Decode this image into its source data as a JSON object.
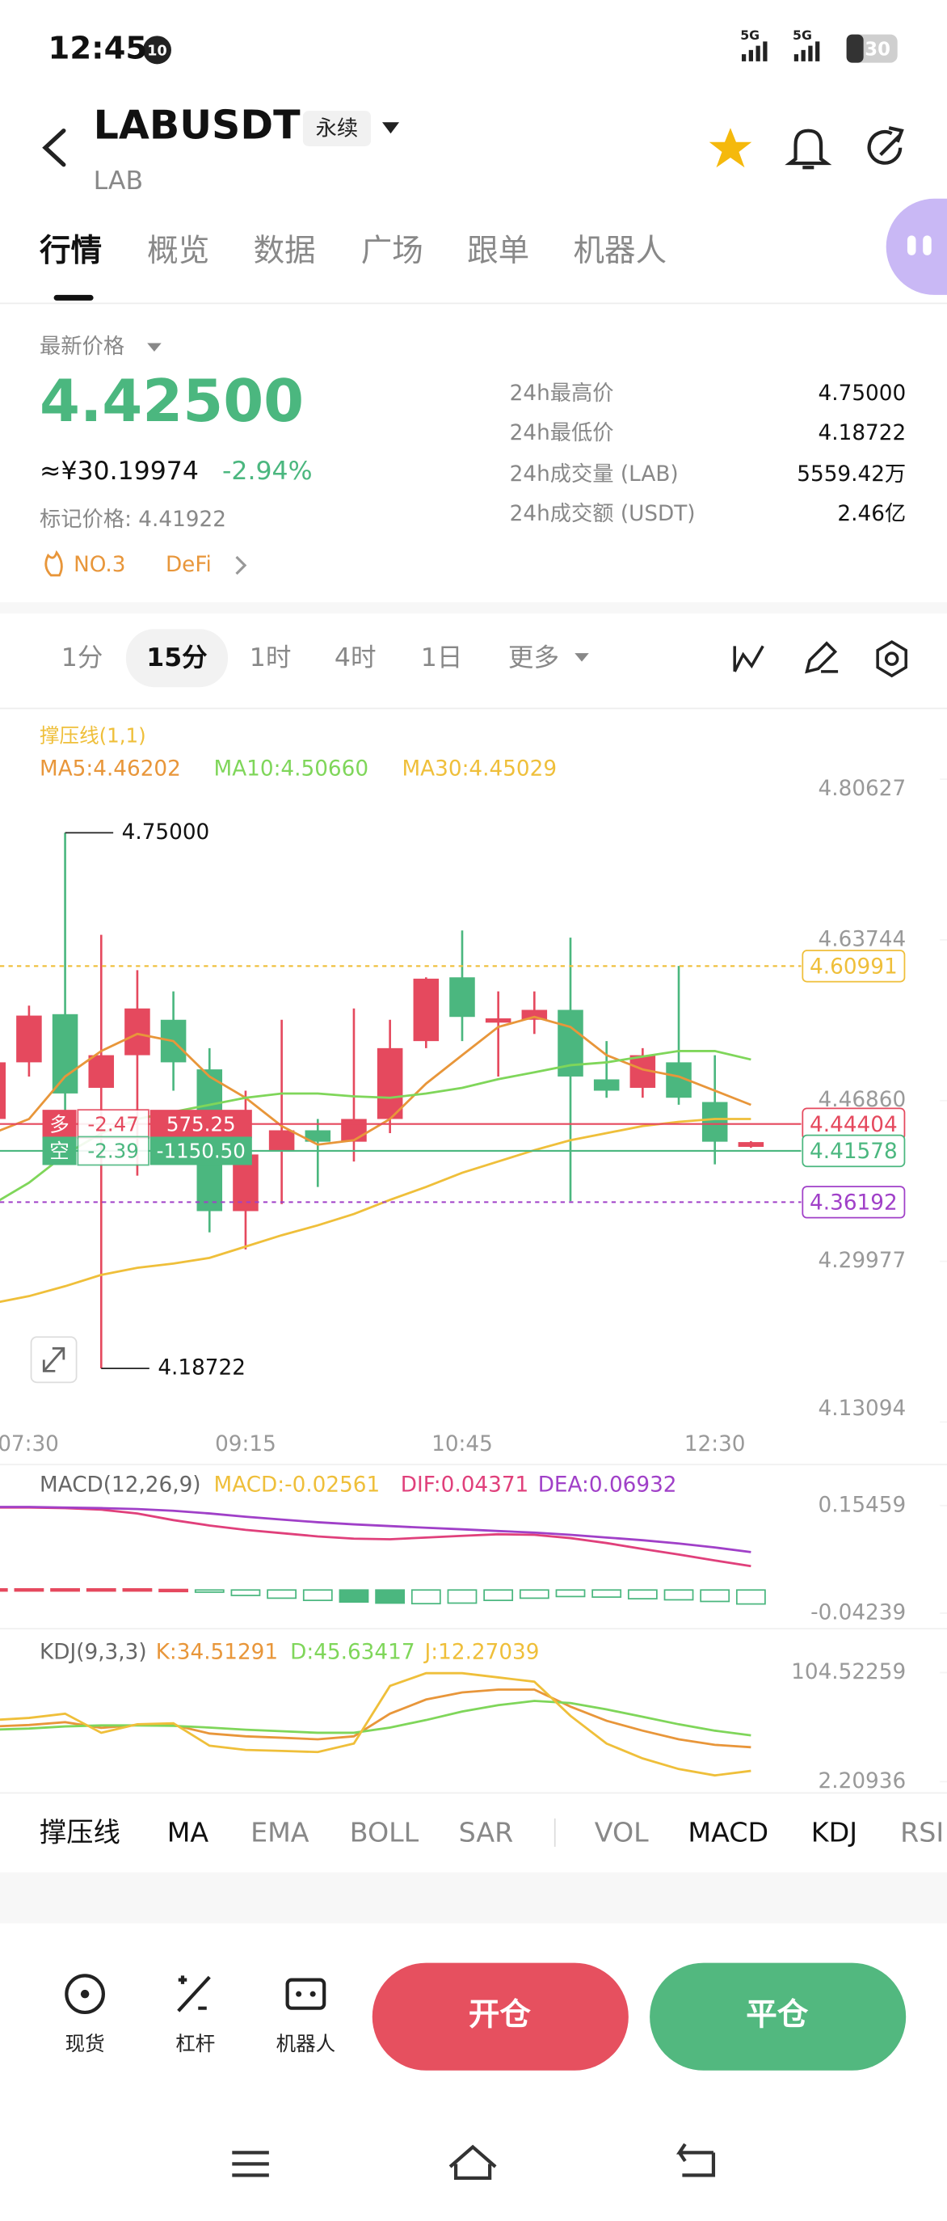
{
  "status": {
    "time": "12:45",
    "badge": "10",
    "network": [
      "5G",
      "5G"
    ],
    "battery": "30"
  },
  "header": {
    "symbol": "LABUSDT",
    "contract": "永续",
    "base": "LAB"
  },
  "tabs": [
    "行情",
    "概览",
    "数据",
    "广场",
    "跟单",
    "机器人"
  ],
  "ticker": {
    "price_label": "最新价格",
    "last": "4.42500",
    "cny": "≈¥30.19974",
    "change": "-2.94%",
    "mark": "标记价格: 4.41922",
    "rank": "NO.3",
    "sector": "DeFi"
  },
  "stats": [
    [
      "24h最高价",
      "4.75000"
    ],
    [
      "24h最低价",
      "4.18722"
    ],
    [
      "24h成交量 (LAB)",
      "5559.42万"
    ],
    [
      "24h成交额 (USDT)",
      "2.46亿"
    ]
  ],
  "intervals": [
    "1分",
    "15分",
    "1时",
    "4时",
    "1日",
    "更多"
  ],
  "chart_data": [
    {
      "type": "candlestick",
      "title": "撑压线(1,1)",
      "categories": [
        "07:30",
        null,
        null,
        null,
        null,
        null,
        null,
        "09:15",
        null,
        null,
        null,
        null,
        null,
        "10:45",
        null,
        null,
        null,
        null,
        null,
        null,
        "12:30",
        null
      ],
      "open": [
        4.4493,
        4.5088,
        4.5594,
        4.482,
        4.5163,
        4.5535,
        4.5014,
        4.3525,
        4.4165,
        4.4374,
        4.4254,
        4.4493,
        4.5311,
        4.5981,
        4.5505,
        4.5535,
        4.5639,
        4.4909,
        4.482,
        4.5088,
        4.4671,
        4.42
      ],
      "high": [
        4.5237,
        4.5684,
        4.75,
        4.6428,
        4.6056,
        4.5833,
        4.5237,
        4.479,
        4.5535,
        4.4493,
        4.5654,
        4.5535,
        4.5981,
        4.6473,
        4.5833,
        4.5833,
        4.6398,
        4.5311,
        4.5237,
        4.6101,
        4.5163,
        4.426
      ],
      "low": [
        4.4344,
        4.4939,
        4.4493,
        4.18722,
        4.3897,
        4.479,
        4.3302,
        4.3123,
        4.3599,
        4.3778,
        4.4046,
        4.4344,
        4.5237,
        4.5311,
        4.4939,
        4.5386,
        4.3629,
        4.4716,
        4.4716,
        4.4642,
        4.4016,
        4.419
      ],
      "close": [
        4.5088,
        4.5579,
        4.4761,
        4.5163,
        4.5654,
        4.5088,
        4.3525,
        4.412,
        4.4374,
        4.4254,
        4.4493,
        4.5237,
        4.5967,
        4.5565,
        4.555,
        4.5639,
        4.4939,
        4.479,
        4.5163,
        4.4716,
        4.4254,
        4.425
      ],
      "up_color": "#e5495e",
      "down_color": "#4bb77f",
      "series": [
        {
          "name": "MA5:4.46202",
          "color": "#e8963a",
          "values": [
            4.4344,
            4.4493,
            4.4939,
            4.5207,
            4.5386,
            4.5311,
            4.4939,
            4.4716,
            4.4418,
            4.4223,
            4.4269,
            4.4493,
            4.4865,
            4.5163,
            4.546,
            4.5565,
            4.546,
            4.5163,
            4.5014,
            4.4939,
            4.479,
            4.4642
          ]
        },
        {
          "name": "MA10:4.50660",
          "color": "#7fd65a",
          "values": [
            4.3599,
            4.3823,
            4.412,
            4.4343,
            4.4493,
            4.4567,
            4.4642,
            4.4716,
            4.4761,
            4.4761,
            4.4731,
            4.4716,
            4.4761,
            4.482,
            4.491,
            4.4984,
            4.5058,
            4.5088,
            4.5148,
            4.5207,
            4.5207,
            4.5118
          ]
        },
        {
          "name": "MA30:4.45029",
          "color": "#efbf3a",
          "values": [
            4.2557,
            4.2632,
            4.2736,
            4.2855,
            4.2929,
            4.2974,
            4.3034,
            4.3153,
            4.3272,
            4.3376,
            4.3495,
            4.3644,
            4.3778,
            4.3927,
            4.4046,
            4.4165,
            4.4269,
            4.4344,
            4.4418,
            4.4463,
            4.4493,
            4.4493
          ]
        }
      ],
      "ylim": [
        4.13094,
        4.80627
      ],
      "yticks": [
        4.80627,
        4.63744,
        {
          "value": 4.4686,
          "label": "4.46860"
        },
        4.29977,
        4.13094
      ],
      "grid": false,
      "price_lines": [
        {
          "value": 4.60991,
          "color": "#efbf3a",
          "style": "dashed"
        },
        {
          "value": 4.44404,
          "color": "#e5495e",
          "style": "solid"
        },
        {
          "value": 4.41578,
          "color": "#4bb77f",
          "style": "solid"
        },
        {
          "value": 4.36192,
          "color": "#a040c8",
          "style": "dashed"
        }
      ],
      "annotations": [
        {
          "value": 4.75,
          "label": "4.75000"
        },
        4.18722
      ],
      "positions": [
        {
          "side": "多",
          "pnl": "-2.47",
          "amount": "575.25",
          "color": "#e5495e"
        },
        {
          "side": "空",
          "pnl": "-2.39",
          "amount": "-1150.50",
          "color": "#4bb77f"
        }
      ]
    },
    {
      "type": "macd",
      "title": "MACD(12,26,9)",
      "series": [
        {
          "name": "MACD:-0.02561",
          "type": "bar",
          "color": "#4bb77f",
          "values": [
            0.002,
            0.002,
            0.002,
            0.002,
            0.002,
            0.001,
            -0.004,
            -0.01,
            -0.015,
            -0.019,
            -0.022,
            -0.024,
            -0.025,
            -0.024,
            -0.019,
            -0.015,
            -0.012,
            -0.013,
            -0.016,
            -0.018,
            -0.021,
            -0.02561
          ]
        },
        {
          "name": "DIF:0.04371",
          "type": "line",
          "color": "#e0407b",
          "values": [
            0.151,
            0.151,
            0.15,
            0.147,
            0.14,
            0.128,
            0.118,
            0.11,
            0.104,
            0.098,
            0.094,
            0.093,
            0.096,
            0.099,
            0.102,
            0.101,
            0.095,
            0.086,
            0.075,
            0.065,
            0.054,
            0.04371
          ]
        },
        {
          "name": "DEA:0.06932",
          "type": "line",
          "color": "#a040c8",
          "values": [
            0.152,
            0.152,
            0.151,
            0.15,
            0.148,
            0.145,
            0.14,
            0.134,
            0.129,
            0.124,
            0.12,
            0.117,
            0.114,
            0.111,
            0.108,
            0.105,
            0.101,
            0.096,
            0.091,
            0.085,
            0.078,
            0.06932
          ]
        }
      ],
      "ylim": [
        -0.04239,
        0.15459
      ],
      "yticks": [
        0.15459,
        -0.04239
      ],
      "grid": false
    },
    {
      "type": "kdj",
      "title": "KDJ(9,3,3)",
      "series": [
        {
          "name": "K:34.51291",
          "color": "#e8963a",
          "values": [
            54,
            55.3,
            58.0,
            52.7,
            55.3,
            55.3,
            47.4,
            44.7,
            43.4,
            42.0,
            44.7,
            66.0,
            79.3,
            85.9,
            88.6,
            88.6,
            72.6,
            59.3,
            50.0,
            42.0,
            36.7,
            34.51291
          ]
        },
        {
          "name": "D:45.63417",
          "color": "#7fd65a",
          "values": [
            51,
            52.0,
            54.0,
            55.0,
            55.0,
            54.5,
            53.0,
            51.0,
            49.5,
            48.0,
            48.0,
            53.0,
            60.0,
            68.0,
            74.0,
            78.0,
            76.0,
            70.0,
            63.0,
            56.0,
            50.0,
            45.63417
          ]
        },
        {
          "name": "J:12.27039",
          "color": "#efbf3a",
          "values": [
            60,
            62,
            66,
            48,
            56,
            57,
            36,
            32,
            31,
            30,
            38,
            92,
            104,
            104,
            100,
            96,
            64,
            38,
            24,
            14,
            8,
            12.27039
          ]
        }
      ],
      "ylim": [
        2.20936,
        104.52259
      ],
      "yticks": [
        104.52259,
        2.20936
      ],
      "grid": false
    }
  ],
  "indicators": [
    "撑压线",
    "MA",
    "EMA",
    "BOLL",
    "SAR",
    "VOL",
    "MACD",
    "KDJ",
    "RSI"
  ],
  "actions": [
    "现货",
    "杠杆",
    "机器人"
  ],
  "buttons": [
    "开仓",
    "平仓"
  ]
}
